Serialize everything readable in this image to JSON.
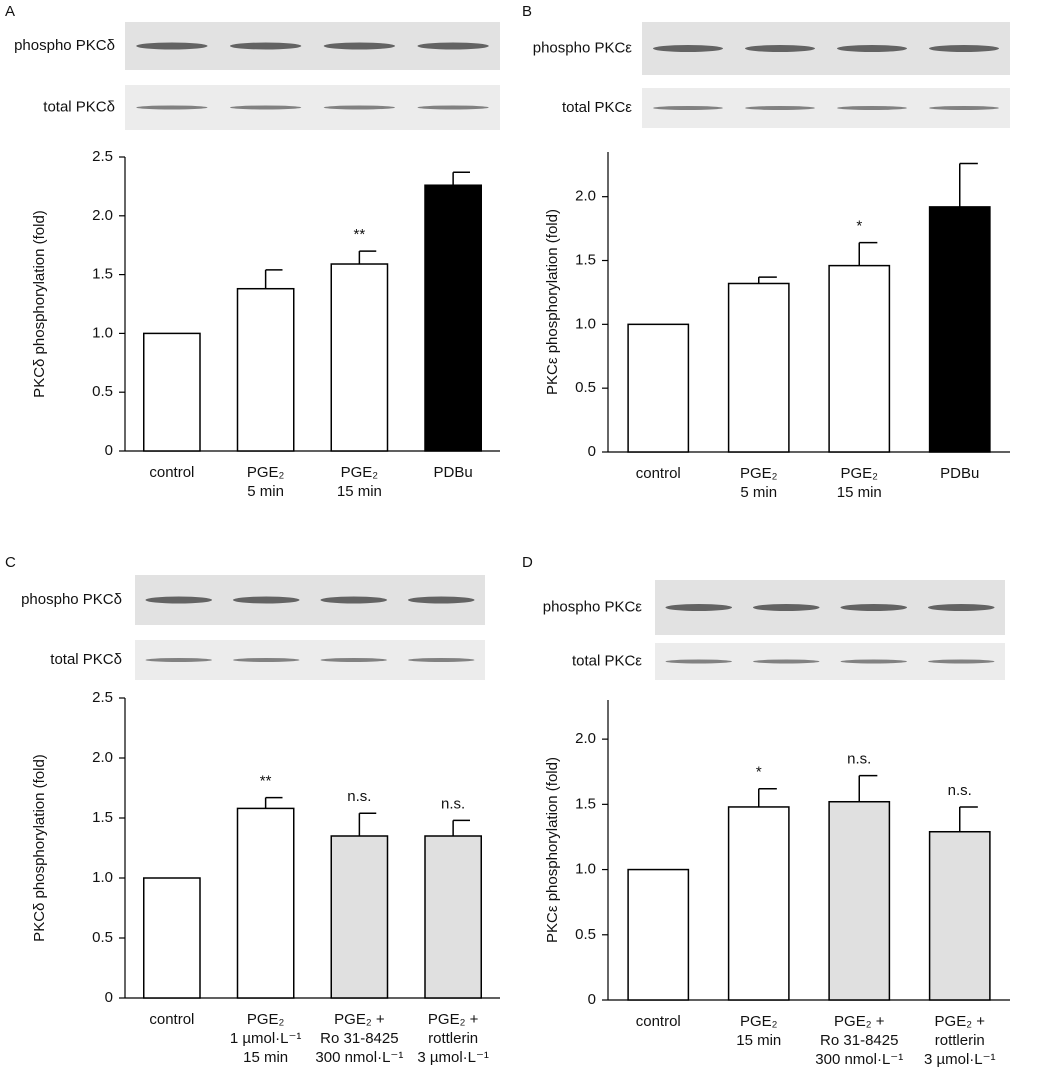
{
  "chart_data": [
    {
      "type": "bar",
      "panel": "A",
      "blot_labels": [
        "phospho PKCδ",
        "total PKCδ"
      ],
      "ylabel": "PKCδ phosphorylation (fold)",
      "categories": [
        [
          "control"
        ],
        [
          "PGE₂",
          "5 min"
        ],
        [
          "PGE₂",
          "15 min"
        ],
        [
          "PDBu"
        ]
      ],
      "values": [
        1.0,
        1.38,
        1.59,
        2.26
      ],
      "errors": [
        null,
        0.16,
        0.11,
        0.11
      ],
      "colors": [
        "#ffffff",
        "#ffffff",
        "#ffffff",
        "#000000"
      ],
      "annotations": [
        null,
        null,
        "**",
        null
      ],
      "ylim": [
        0,
        2.5
      ],
      "yticks": [
        0,
        {
          "value": 0.5,
          "label": "0.5"
        },
        {
          "value": 1,
          "label": "1.0"
        },
        {
          "value": 1.5,
          "label": "1.5"
        },
        {
          "value": 2,
          "label": "2.0"
        },
        2.5
      ]
    },
    {
      "type": "bar",
      "panel": "B",
      "blot_labels": [
        "phospho PKCε",
        "total PKCε"
      ],
      "ylabel": "PKCε phosphorylation (fold)",
      "categories": [
        [
          "control"
        ],
        [
          "PGE₂",
          "5 min"
        ],
        [
          "PGE₂",
          "15 min"
        ],
        [
          "PDBu"
        ]
      ],
      "values": [
        1.0,
        1.32,
        1.46,
        1.92
      ],
      "errors": [
        null,
        0.05,
        0.18,
        0.34
      ],
      "colors": [
        "#ffffff",
        "#ffffff",
        "#ffffff",
        "#000000"
      ],
      "annotations": [
        null,
        null,
        "*",
        null
      ],
      "ylim": [
        0,
        2.35
      ],
      "yticks": [
        0,
        {
          "value": 0.5,
          "label": "0.5"
        },
        {
          "value": 1,
          "label": "1.0"
        },
        {
          "value": 1.5,
          "label": "1.5"
        },
        {
          "value": 2,
          "label": "2.0"
        }
      ]
    },
    {
      "type": "bar",
      "panel": "C",
      "blot_labels": [
        "phospho PKCδ",
        "total PKCδ"
      ],
      "ylabel": "PKCδ phosphorylation (fold)",
      "categories": [
        [
          "control"
        ],
        [
          "PGE₂",
          "1 µmol·L⁻¹",
          "15 min"
        ],
        [
          "PGE₂ +",
          "Ro 31-8425",
          "300 nmol·L⁻¹"
        ],
        [
          "PGE₂ +",
          "rottlerin",
          "3 µmol·L⁻¹"
        ]
      ],
      "values": [
        1.0,
        1.58,
        1.35,
        1.35
      ],
      "errors": [
        null,
        0.09,
        0.19,
        0.13
      ],
      "colors": [
        "#ffffff",
        "#ffffff",
        "#e0e0e0",
        "#e0e0e0"
      ],
      "annotations": [
        null,
        "**",
        "n.s.",
        "n.s."
      ],
      "ylim": [
        0,
        2.5
      ],
      "yticks": [
        0,
        {
          "value": 0.5,
          "label": "0.5"
        },
        {
          "value": 1,
          "label": "1.0"
        },
        {
          "value": 1.5,
          "label": "1.5"
        },
        {
          "value": 2,
          "label": "2.0"
        },
        2.5
      ]
    },
    {
      "type": "bar",
      "panel": "D",
      "blot_labels": [
        "phospho PKCε",
        "total PKCε"
      ],
      "ylabel": "PKCε phosphorylation (fold)",
      "categories": [
        [
          "control"
        ],
        [
          "PGE₂",
          "15 min"
        ],
        [
          "PGE₂ +",
          "Ro 31-8425",
          "300 nmol·L⁻¹"
        ],
        [
          "PGE₂ +",
          "rottlerin",
          "3 µmol·L⁻¹"
        ]
      ],
      "values": [
        1.0,
        1.48,
        1.52,
        1.29
      ],
      "errors": [
        null,
        0.14,
        0.2,
        0.19
      ],
      "colors": [
        "#ffffff",
        "#ffffff",
        "#e0e0e0",
        "#e0e0e0"
      ],
      "annotations": [
        null,
        "*",
        "n.s.",
        "n.s."
      ],
      "ylim": [
        0,
        2.3
      ],
      "yticks": [
        0,
        {
          "value": 0.5,
          "label": "0.5"
        },
        {
          "value": 1,
          "label": "1.0"
        },
        {
          "value": 1.5,
          "label": "1.5"
        },
        {
          "value": 2,
          "label": "2.0"
        }
      ]
    }
  ]
}
